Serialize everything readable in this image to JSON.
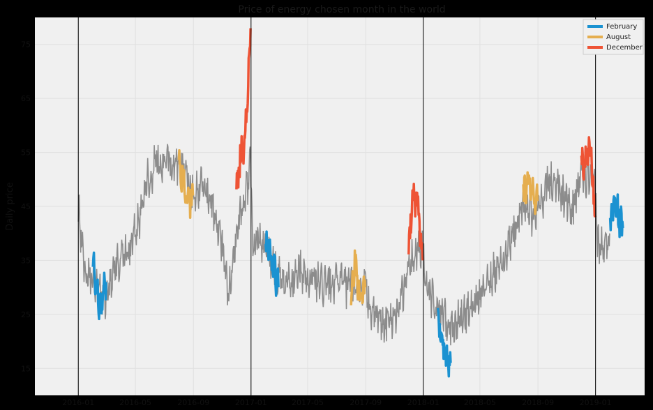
{
  "chart_data": {
    "type": "line",
    "title": "Price of energy chosen month in the world",
    "xlabel": "",
    "ylabel": "Daily price",
    "grid": true,
    "legend_position": "top-right",
    "background_color": "#f0f0f0",
    "base_line_color": "#8c8c8c",
    "year_markers": [
      "2016-01-01",
      "2017-01-01",
      "2018-01-01",
      "2019-01-01"
    ],
    "x_range": [
      "2015-10-01",
      "2019-04-15"
    ],
    "x_ticks": [
      "2016-01",
      "2016-05",
      "2016-09",
      "2017-01",
      "2017-05",
      "2017-09",
      "2018-01",
      "2018-05",
      "2018-09",
      "2019-01"
    ],
    "y_range": [
      10,
      80
    ],
    "y_ticks": [
      15,
      25,
      35,
      45,
      55,
      65,
      75
    ],
    "base_series": {
      "name": "",
      "knots": [
        [
          "2016-01-01",
          45
        ],
        [
          "2016-01-15",
          33
        ],
        [
          "2016-01-31",
          31
        ],
        [
          "2016-02-15",
          29
        ],
        [
          "2016-02-28",
          27
        ],
        [
          "2016-03-15",
          33
        ],
        [
          "2016-04-01",
          36
        ],
        [
          "2016-04-20",
          37
        ],
        [
          "2016-05-05",
          41
        ],
        [
          "2016-05-25",
          50
        ],
        [
          "2016-06-15",
          53
        ],
        [
          "2016-07-10",
          53
        ],
        [
          "2016-07-31",
          52
        ],
        [
          "2016-08-15",
          52
        ],
        [
          "2016-08-31",
          47
        ],
        [
          "2016-09-15",
          49
        ],
        [
          "2016-10-10",
          45
        ],
        [
          "2016-10-31",
          38
        ],
        [
          "2016-11-15",
          29
        ],
        [
          "2016-11-30",
          40
        ],
        [
          "2016-12-20",
          47
        ],
        [
          "2016-12-31",
          53
        ],
        [
          "2017-01-05",
          38
        ],
        [
          "2017-01-31",
          38
        ],
        [
          "2017-02-28",
          32
        ],
        [
          "2017-03-20",
          31
        ],
        [
          "2017-04-15",
          33
        ],
        [
          "2017-05-15",
          31
        ],
        [
          "2017-06-15",
          30
        ],
        [
          "2017-07-10",
          31
        ],
        [
          "2017-07-31",
          30
        ],
        [
          "2017-08-31",
          30
        ],
        [
          "2017-09-15",
          25
        ],
        [
          "2017-10-15",
          23
        ],
        [
          "2017-11-15",
          27
        ],
        [
          "2017-11-30",
          34
        ],
        [
          "2017-12-31",
          38
        ],
        [
          "2018-01-05",
          30
        ],
        [
          "2018-01-31",
          26
        ],
        [
          "2018-03-01",
          22
        ],
        [
          "2018-03-20",
          24
        ],
        [
          "2018-04-15",
          27
        ],
        [
          "2018-05-15",
          31
        ],
        [
          "2018-06-15",
          34
        ],
        [
          "2018-07-10",
          40
        ],
        [
          "2018-07-31",
          45
        ],
        [
          "2018-08-31",
          43
        ],
        [
          "2018-09-20",
          50
        ],
        [
          "2018-10-15",
          48
        ],
        [
          "2018-11-15",
          44
        ],
        [
          "2018-11-30",
          51
        ],
        [
          "2018-12-31",
          49
        ],
        [
          "2019-01-05",
          38
        ],
        [
          "2019-01-20",
          37
        ],
        [
          "2019-01-31",
          40
        ]
      ]
    },
    "series": [
      {
        "name": "February",
        "color": "#1b92d1",
        "segments": [
          [
            [
              "2016-02-01",
              34
            ],
            [
              "2016-02-08",
              31
            ],
            [
              "2016-02-15",
              27
            ],
            [
              "2016-02-22",
              29
            ],
            [
              "2016-02-29",
              31
            ]
          ],
          [
            [
              "2017-02-01",
              38
            ],
            [
              "2017-02-10",
              37
            ],
            [
              "2017-02-18",
              34
            ],
            [
              "2017-02-28",
              30
            ]
          ],
          [
            [
              "2018-02-01",
              24
            ],
            [
              "2018-02-10",
              19
            ],
            [
              "2018-02-18",
              17
            ],
            [
              "2018-02-28",
              16
            ]
          ],
          [
            [
              "2019-02-01",
              41
            ],
            [
              "2019-02-08",
              46
            ],
            [
              "2019-02-15",
              44
            ],
            [
              "2019-02-28",
              41
            ]
          ]
        ]
      },
      {
        "name": "August",
        "color": "#e5ae4f",
        "segments": [
          [
            [
              "2016-08-01",
              55
            ],
            [
              "2016-08-10",
              49
            ],
            [
              "2016-08-20",
              46
            ],
            [
              "2016-08-31",
              47
            ]
          ],
          [
            [
              "2017-08-01",
              28
            ],
            [
              "2017-08-10",
              34
            ],
            [
              "2017-08-20",
              28
            ],
            [
              "2017-08-31",
              30
            ]
          ],
          [
            [
              "2018-08-01",
              47
            ],
            [
              "2018-08-10",
              50
            ],
            [
              "2018-08-20",
              48
            ],
            [
              "2018-08-31",
              46
            ]
          ]
        ]
      },
      {
        "name": "December",
        "color": "#ee5335",
        "segments": [
          [
            [
              "2016-12-01",
              48
            ],
            [
              "2016-12-10",
              54
            ],
            [
              "2016-12-20",
              58
            ],
            [
              "2016-12-31",
              78
            ]
          ],
          [
            [
              "2017-12-01",
              38
            ],
            [
              "2017-12-10",
              46
            ],
            [
              "2017-12-20",
              45
            ],
            [
              "2017-12-31",
              35
            ]
          ],
          [
            [
              "2018-12-01",
              54
            ],
            [
              "2018-12-10",
              53
            ],
            [
              "2018-12-20",
              57
            ],
            [
              "2018-12-31",
              43
            ]
          ]
        ]
      }
    ]
  }
}
